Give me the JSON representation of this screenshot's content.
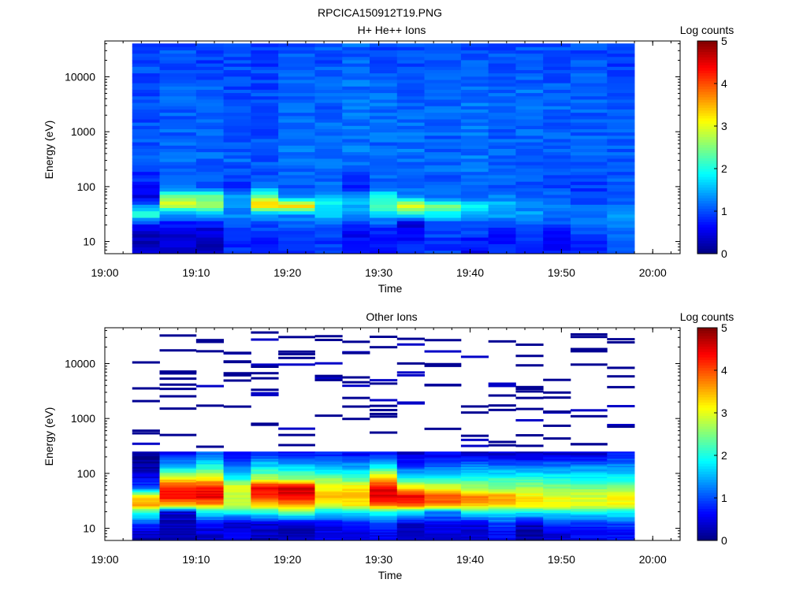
{
  "figure_title": "RPCICA150912T19.PNG",
  "colormap": [
    "#00007f",
    "#0000ff",
    "#007fff",
    "#00ffff",
    "#7fff7f",
    "#ffff00",
    "#ff7f00",
    "#ff0000",
    "#7f0000"
  ],
  "chart_data": [
    {
      "type": "heatmap",
      "title": "H+ He++ Ions",
      "xlabel": "Time",
      "ylabel": "Energy (eV)",
      "colorbar_label": "Log counts",
      "y_scale": "log",
      "xlim": [
        "19:00",
        "20:03"
      ],
      "ylim": [
        6,
        45000
      ],
      "clim": [
        0,
        5
      ],
      "x_ticks": [
        "19:00",
        "19:10",
        "19:20",
        "19:30",
        "19:40",
        "19:50",
        "20:00"
      ],
      "y_ticks": [
        "10",
        "100",
        "1000",
        "10000"
      ],
      "colorbar_ticks": [
        "0",
        "1",
        "2",
        "3",
        "4",
        "5"
      ],
      "time_bins_start": [
        "19:03",
        "19:06",
        "19:10",
        "19:13",
        "19:16",
        "19:19",
        "19:23",
        "19:26",
        "19:29",
        "19:32",
        "19:35",
        "19:39",
        "19:42",
        "19:45",
        "19:48",
        "19:51",
        "19:55"
      ],
      "time_bins_end": "19:58",
      "energy_profile": [
        {
          "energy_eV": 8,
          "levels": [
            0.4,
            0.4,
            0.3,
            0.8,
            0.8,
            0.9,
            0.9,
            0.8,
            0.8,
            0.8,
            0.9,
            0.6,
            0.8,
            0.8,
            0.7,
            0.8,
            1.0
          ]
        },
        {
          "energy_eV": 14,
          "levels": [
            0.2,
            0.3,
            0.4,
            0.8,
            0.8,
            0.8,
            0.9,
            0.6,
            0.7,
            0.6,
            0.9,
            0.9,
            0.7,
            0.9,
            0.7,
            1.0,
            1.1
          ]
        },
        {
          "energy_eV": 22,
          "levels": [
            0.9,
            0.8,
            0.7,
            1.0,
            1.0,
            1.1,
            1.2,
            1.0,
            1.1,
            0.3,
            1.1,
            1.1,
            1.1,
            1.1,
            1.0,
            1.1,
            1.2
          ]
        },
        {
          "energy_eV": 32,
          "levels": [
            2.2,
            1.3,
            1.5,
            1.3,
            1.5,
            1.4,
            1.7,
            1.5,
            1.6,
            2.0,
            1.8,
            1.5,
            1.4,
            1.4,
            1.1,
            1.3,
            1.3
          ]
        },
        {
          "energy_eV": 45,
          "levels": [
            1.3,
            2.9,
            2.8,
            1.3,
            3.4,
            3.5,
            1.9,
            1.5,
            2.4,
            3.0,
            2.5,
            2.0,
            1.6,
            1.2,
            1.2,
            1.1,
            1.2
          ]
        },
        {
          "energy_eV": 65,
          "levels": [
            0.5,
            2.6,
            2.4,
            1.4,
            2.6,
            1.4,
            1.6,
            1.5,
            2.0,
            1.4,
            1.1,
            1.1,
            1.3,
            1.1,
            1.1,
            0.9,
            1.0
          ]
        },
        {
          "energy_eV": 100,
          "levels": [
            0.7,
            1.1,
            1.1,
            0.8,
            1.1,
            1.0,
            1.2,
            0.8,
            1.1,
            1.0,
            1.1,
            1.1,
            1.1,
            1.0,
            1.0,
            0.9,
            1.0
          ]
        },
        {
          "energy_eV": 300,
          "levels": [
            1.0,
            1.1,
            1.1,
            1.1,
            1.0,
            1.2,
            1.1,
            1.2,
            1.1,
            1.2,
            1.1,
            1.2,
            1.1,
            1.1,
            1.1,
            1.1,
            1.1
          ]
        },
        {
          "energy_eV": 3000,
          "levels": [
            1.0,
            1.1,
            1.1,
            1.0,
            1.0,
            1.1,
            1.1,
            1.2,
            1.2,
            1.1,
            1.1,
            1.2,
            1.1,
            1.2,
            1.1,
            1.1,
            1.0
          ]
        },
        {
          "energy_eV": 30000,
          "levels": [
            1.0,
            1.0,
            0.9,
            1.0,
            0.9,
            1.0,
            1.0,
            1.1,
            1.0,
            1.0,
            1.0,
            1.0,
            1.0,
            1.0,
            1.0,
            1.0,
            0.9
          ]
        }
      ]
    },
    {
      "type": "heatmap",
      "title": "Other Ions",
      "xlabel": "Time",
      "ylabel": "Energy (eV)",
      "colorbar_label": "Log counts",
      "y_scale": "log",
      "xlim": [
        "19:00",
        "20:03"
      ],
      "ylim": [
        6,
        45000
      ],
      "clim": [
        0,
        5
      ],
      "x_ticks": [
        "19:00",
        "19:10",
        "19:20",
        "19:30",
        "19:40",
        "19:50",
        "20:00"
      ],
      "y_ticks": [
        "10",
        "100",
        "1000",
        "10000"
      ],
      "colorbar_ticks": [
        "0",
        "1",
        "2",
        "3",
        "4",
        "5"
      ],
      "time_bins_start": [
        "19:03",
        "19:06",
        "19:10",
        "19:13",
        "19:16",
        "19:19",
        "19:23",
        "19:26",
        "19:29",
        "19:32",
        "19:35",
        "19:39",
        "19:42",
        "19:45",
        "19:48",
        "19:51",
        "19:55"
      ],
      "time_bins_end": "19:58",
      "energy_profile": [
        {
          "energy_eV": 8,
          "levels": [
            0.3,
            0.3,
            0.4,
            0.6,
            0.3,
            0.3,
            0.5,
            0.5,
            0.6,
            0.4,
            0.5,
            0.5,
            0.6,
            0.2,
            0.5,
            0.6,
            0.7
          ]
        },
        {
          "energy_eV": 12,
          "levels": [
            0.9,
            0.3,
            0.7,
            0.3,
            0.4,
            0.3,
            0.6,
            0.7,
            0.9,
            0.4,
            0.6,
            0.4,
            0.9,
            0.3,
            0.8,
            0.8,
            0.9
          ]
        },
        {
          "energy_eV": 20,
          "levels": [
            2.1,
            0.4,
            1.8,
            1.9,
            2.0,
            2.4,
            1.7,
            1.9,
            2.1,
            1.9,
            1.3,
            2.0,
            1.9,
            1.9,
            1.9,
            1.9,
            2.0
          ]
        },
        {
          "energy_eV": 27,
          "levels": [
            3.6,
            3.5,
            3.6,
            3.0,
            3.4,
            3.6,
            3.0,
            3.2,
            3.9,
            3.9,
            3.8,
            3.5,
            3.4,
            3.3,
            3.2,
            3.1,
            3.1
          ]
        },
        {
          "energy_eV": 38,
          "levels": [
            3.3,
            4.4,
            4.5,
            2.8,
            4.0,
            4.4,
            3.5,
            3.4,
            4.6,
            4.5,
            4.0,
            3.7,
            3.6,
            3.2,
            3.0,
            2.9,
            3.2
          ]
        },
        {
          "energy_eV": 55,
          "levels": [
            1.0,
            4.3,
            4.3,
            3.2,
            4.6,
            4.7,
            3.1,
            3.3,
            4.5,
            3.3,
            3.0,
            2.7,
            2.5,
            2.6,
            2.5,
            2.5,
            2.7
          ]
        },
        {
          "energy_eV": 80,
          "levels": [
            0.6,
            3.2,
            3.2,
            2.0,
            2.8,
            2.6,
            2.5,
            2.3,
            3.4,
            2.0,
            2.0,
            2.1,
            2.1,
            2.1,
            2.0,
            1.8,
            1.9
          ]
        },
        {
          "energy_eV": 130,
          "levels": [
            0.2,
            1.7,
            2.1,
            1.2,
            1.8,
            1.7,
            1.6,
            1.5,
            2.0,
            1.0,
            1.2,
            1.4,
            1.3,
            1.2,
            1.3,
            1.4,
            1.4
          ]
        },
        {
          "energy_eV": 220,
          "levels": [
            0.1,
            0.8,
            1.2,
            0.5,
            0.9,
            0.8,
            0.8,
            0.6,
            0.8,
            0.4,
            0.6,
            0.4,
            0.4,
            0.4,
            0.4,
            0.4,
            0.8
          ]
        },
        {
          "energy_eV": 400,
          "levels": [
            null,
            0.1,
            0.4,
            null,
            null,
            0.2,
            0.2,
            null,
            0.2,
            null,
            0.2,
            null,
            0.2,
            0.3,
            0.2,
            0.1,
            0.2
          ]
        }
      ]
    }
  ]
}
